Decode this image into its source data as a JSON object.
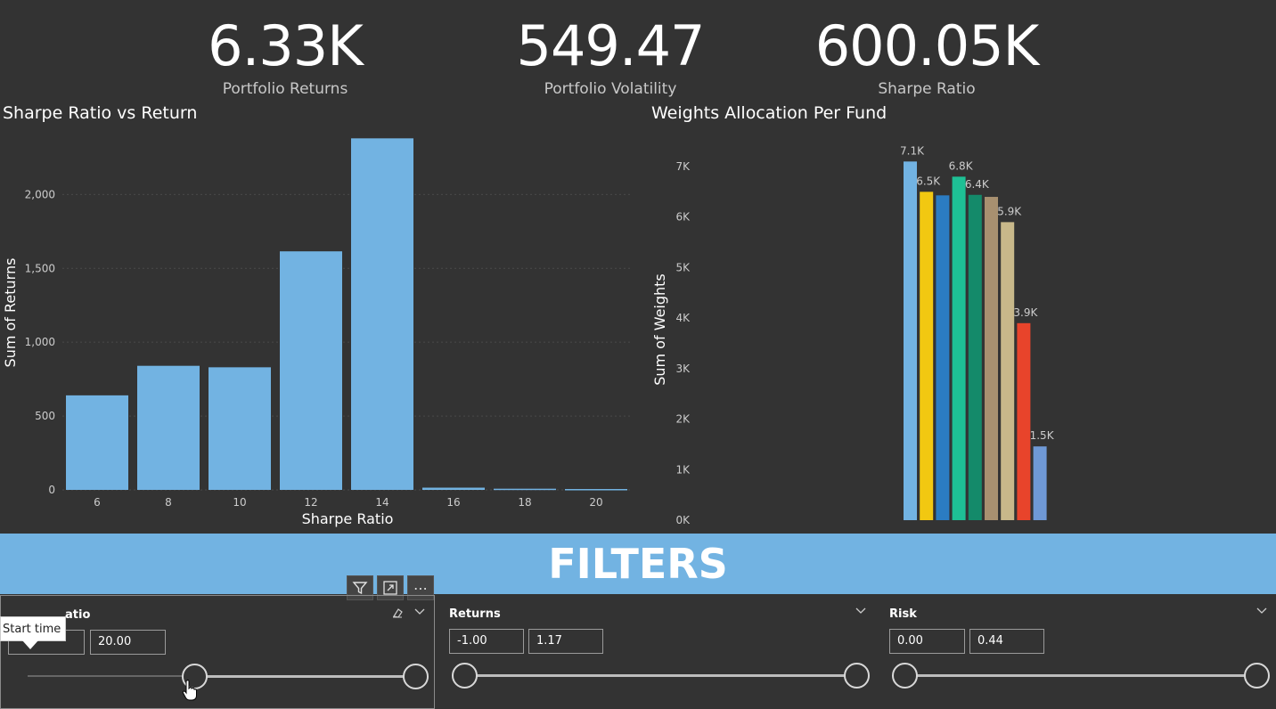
{
  "kpis": [
    {
      "value": "6.33K",
      "label": "Portfolio Returns"
    },
    {
      "value": "549.47",
      "label": "Portfolio Volatility"
    },
    {
      "value": "600.05K",
      "label": "Sharpe Ratio"
    }
  ],
  "chart_data": [
    {
      "type": "bar",
      "title": "Sharpe Ratio vs Return",
      "xlabel": "Sharpe Ratio",
      "ylabel": "Sum of Returns",
      "categories": [
        "6",
        "8",
        "10",
        "12",
        "14",
        "16",
        "18",
        "20"
      ],
      "values": [
        640,
        840,
        830,
        1615,
        2380,
        15,
        8,
        6
      ],
      "yticks": [
        "0",
        "500",
        "1,000",
        "1,500",
        "2,000"
      ],
      "ylim": [
        0,
        2400
      ],
      "grid": true,
      "color": "#72b3e2"
    },
    {
      "type": "bar",
      "title": "Weights Allocation Per Fund",
      "xlabel": "",
      "ylabel": "Sum of Weights",
      "values": [
        7100,
        6500,
        6430,
        6800,
        6440,
        6400,
        5900,
        3900,
        1460
      ],
      "data_labels": [
        "7.1K",
        "6.5K",
        "",
        "6.8K",
        "6.4K",
        "",
        "5.9K",
        "3.9K",
        "1.5K"
      ],
      "colors": [
        "#72b3e2",
        "#f2c811",
        "#2b7cc2",
        "#1ec095",
        "#148a6a",
        "#a89070",
        "#c8b88a",
        "#e8442b",
        "#6f99d6"
      ],
      "yticks": [
        "0K",
        "1K",
        "2K",
        "3K",
        "4K",
        "5K",
        "6K",
        "7K"
      ],
      "ylim": [
        0,
        7000
      ]
    }
  ],
  "banner": {
    "label": "FILTERS"
  },
  "toolbar": {
    "filter_icon": "filter-icon",
    "focus_icon": "focus-mode-icon",
    "more_icon": "more-options-icon",
    "more_label": "⋯"
  },
  "slicers": [
    {
      "title": "Sharpe Ratio",
      "title_visible": "atio",
      "min_value": "",
      "max_value": "20.00",
      "low_fraction": 0.44,
      "high_fraction": 1.0
    },
    {
      "title": "Returns",
      "min_value": "-1.00",
      "max_value": "1.17",
      "low_fraction": 0.0,
      "high_fraction": 1.0
    },
    {
      "title": "Risk",
      "min_value": "0.00",
      "max_value": "0.44",
      "low_fraction": 0.0,
      "high_fraction": 1.0
    }
  ],
  "tooltip": {
    "text": "Start time"
  }
}
